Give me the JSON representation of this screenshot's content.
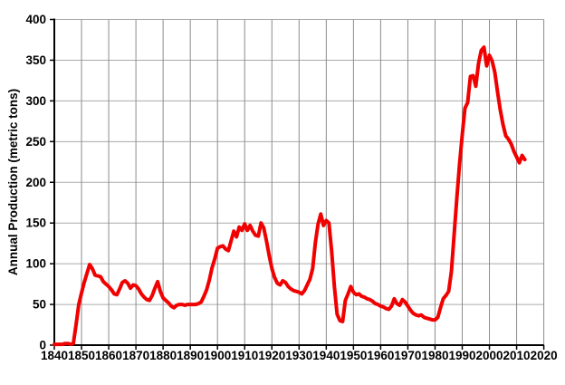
{
  "chart_data": {
    "type": "line",
    "title": "",
    "xlabel": "",
    "ylabel": "Annual Production (metric tons)",
    "xlim": [
      1840,
      2020
    ],
    "ylim": [
      0,
      400
    ],
    "x_ticks": [
      1840,
      1850,
      1860,
      1870,
      1880,
      1890,
      1900,
      1910,
      1920,
      1930,
      1940,
      1950,
      1960,
      1970,
      1980,
      1990,
      2000,
      2010,
      2020
    ],
    "y_ticks": [
      0,
      50,
      100,
      150,
      200,
      250,
      300,
      350,
      400
    ],
    "grid": true,
    "legend_position": "none",
    "series": [
      {
        "name": "annual-production",
        "color": "#f10000",
        "points": [
          [
            1840,
            1
          ],
          [
            1841,
            1
          ],
          [
            1842,
            1
          ],
          [
            1843,
            1
          ],
          [
            1844,
            2
          ],
          [
            1845,
            2
          ],
          [
            1846,
            1
          ],
          [
            1847,
            2
          ],
          [
            1848,
            25
          ],
          [
            1849,
            50
          ],
          [
            1850,
            64
          ],
          [
            1851,
            77
          ],
          [
            1852,
            88
          ],
          [
            1853,
            99
          ],
          [
            1854,
            94
          ],
          [
            1855,
            86
          ],
          [
            1856,
            85
          ],
          [
            1857,
            84
          ],
          [
            1858,
            78
          ],
          [
            1859,
            75
          ],
          [
            1860,
            72
          ],
          [
            1861,
            68
          ],
          [
            1862,
            63
          ],
          [
            1863,
            62
          ],
          [
            1864,
            69
          ],
          [
            1865,
            77
          ],
          [
            1866,
            79
          ],
          [
            1867,
            76
          ],
          [
            1868,
            70
          ],
          [
            1869,
            74
          ],
          [
            1870,
            73
          ],
          [
            1871,
            69
          ],
          [
            1872,
            63
          ],
          [
            1873,
            59
          ],
          [
            1874,
            56
          ],
          [
            1875,
            55
          ],
          [
            1876,
            61
          ],
          [
            1877,
            70
          ],
          [
            1878,
            78
          ],
          [
            1879,
            66
          ],
          [
            1880,
            58
          ],
          [
            1881,
            55
          ],
          [
            1882,
            52
          ],
          [
            1883,
            48
          ],
          [
            1884,
            46
          ],
          [
            1885,
            49
          ],
          [
            1886,
            50
          ],
          [
            1887,
            50
          ],
          [
            1888,
            49
          ],
          [
            1889,
            50
          ],
          [
            1890,
            50
          ],
          [
            1891,
            50
          ],
          [
            1892,
            50
          ],
          [
            1893,
            51
          ],
          [
            1894,
            53
          ],
          [
            1895,
            60
          ],
          [
            1896,
            68
          ],
          [
            1897,
            80
          ],
          [
            1898,
            95
          ],
          [
            1899,
            106
          ],
          [
            1900,
            119
          ],
          [
            1901,
            121
          ],
          [
            1902,
            122
          ],
          [
            1903,
            118
          ],
          [
            1904,
            116
          ],
          [
            1905,
            128
          ],
          [
            1906,
            140
          ],
          [
            1907,
            133
          ],
          [
            1908,
            145
          ],
          [
            1909,
            141
          ],
          [
            1910,
            149
          ],
          [
            1911,
            141
          ],
          [
            1912,
            147
          ],
          [
            1913,
            140
          ],
          [
            1914,
            135
          ],
          [
            1915,
            134
          ],
          [
            1916,
            150
          ],
          [
            1917,
            144
          ],
          [
            1918,
            128
          ],
          [
            1919,
            110
          ],
          [
            1920,
            94
          ],
          [
            1921,
            83
          ],
          [
            1922,
            76
          ],
          [
            1923,
            74
          ],
          [
            1924,
            79
          ],
          [
            1925,
            77
          ],
          [
            1926,
            72
          ],
          [
            1927,
            69
          ],
          [
            1928,
            67
          ],
          [
            1929,
            66
          ],
          [
            1930,
            65
          ],
          [
            1931,
            63
          ],
          [
            1932,
            67
          ],
          [
            1933,
            74
          ],
          [
            1934,
            81
          ],
          [
            1935,
            94
          ],
          [
            1936,
            126
          ],
          [
            1937,
            149
          ],
          [
            1938,
            161
          ],
          [
            1939,
            147
          ],
          [
            1940,
            153
          ],
          [
            1941,
            150
          ],
          [
            1942,
            115
          ],
          [
            1943,
            72
          ],
          [
            1944,
            38
          ],
          [
            1945,
            30
          ],
          [
            1946,
            29
          ],
          [
            1947,
            55
          ],
          [
            1948,
            63
          ],
          [
            1949,
            72
          ],
          [
            1950,
            65
          ],
          [
            1951,
            62
          ],
          [
            1952,
            63
          ],
          [
            1953,
            60
          ],
          [
            1954,
            59
          ],
          [
            1955,
            57
          ],
          [
            1956,
            56
          ],
          [
            1957,
            54
          ],
          [
            1958,
            51
          ],
          [
            1959,
            50
          ],
          [
            1960,
            48
          ],
          [
            1961,
            47
          ],
          [
            1962,
            45
          ],
          [
            1963,
            44
          ],
          [
            1964,
            48
          ],
          [
            1965,
            57
          ],
          [
            1966,
            51
          ],
          [
            1967,
            49
          ],
          [
            1968,
            56
          ],
          [
            1969,
            53
          ],
          [
            1970,
            48
          ],
          [
            1971,
            43
          ],
          [
            1972,
            39
          ],
          [
            1973,
            37
          ],
          [
            1974,
            36
          ],
          [
            1975,
            37
          ],
          [
            1976,
            34
          ],
          [
            1977,
            33
          ],
          [
            1978,
            32
          ],
          [
            1979,
            31
          ],
          [
            1980,
            31
          ],
          [
            1981,
            34
          ],
          [
            1982,
            46
          ],
          [
            1983,
            57
          ],
          [
            1984,
            61
          ],
          [
            1985,
            66
          ],
          [
            1986,
            90
          ],
          [
            1987,
            135
          ],
          [
            1988,
            180
          ],
          [
            1989,
            222
          ],
          [
            1990,
            258
          ],
          [
            1991,
            291
          ],
          [
            1992,
            298
          ],
          [
            1993,
            330
          ],
          [
            1994,
            331
          ],
          [
            1995,
            318
          ],
          [
            1996,
            346
          ],
          [
            1997,
            362
          ],
          [
            1998,
            366
          ],
          [
            1999,
            343
          ],
          [
            2000,
            356
          ],
          [
            2001,
            349
          ],
          [
            2002,
            335
          ],
          [
            2003,
            311
          ],
          [
            2004,
            289
          ],
          [
            2005,
            271
          ],
          [
            2006,
            257
          ],
          [
            2007,
            253
          ],
          [
            2008,
            247
          ],
          [
            2009,
            238
          ],
          [
            2010,
            231
          ],
          [
            2011,
            224
          ],
          [
            2012,
            233
          ],
          [
            2013,
            228
          ]
        ]
      }
    ]
  },
  "style": {
    "background": "#ffffff",
    "h_grid_color": "#aaaaaa",
    "v_grid_color": "#8c8c8c",
    "axis_color": "#000000",
    "text_color": "#000000"
  }
}
